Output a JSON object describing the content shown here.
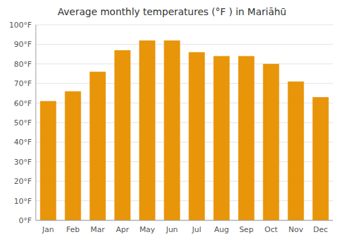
{
  "chart_data": {
    "type": "bar",
    "title": "Average monthly temperatures (°F ) in Mariāhū",
    "categories": [
      "Jan",
      "Feb",
      "Mar",
      "Apr",
      "May",
      "Jun",
      "Jul",
      "Aug",
      "Sep",
      "Oct",
      "Nov",
      "Dec"
    ],
    "values": [
      61,
      66,
      76,
      87,
      92,
      92,
      86,
      84,
      84,
      80,
      71,
      63
    ],
    "color": "#E8950A",
    "ylim": [
      0,
      100
    ],
    "yticks": [
      {
        "value": 0,
        "label": "0°F"
      },
      {
        "value": 10,
        "label": "10°F"
      },
      {
        "value": 20,
        "label": "20°F"
      },
      {
        "value": 30,
        "label": "30°F"
      },
      {
        "value": 40,
        "label": "40°F"
      },
      {
        "value": 50,
        "label": "50°F"
      },
      {
        "value": 60,
        "label": "60°F"
      },
      {
        "value": 70,
        "label": "70°F"
      },
      {
        "value": 80,
        "label": "80°F"
      },
      {
        "value": 90,
        "label": "90°F"
      },
      {
        "value": 100,
        "label": "100°F"
      }
    ],
    "grid": true
  }
}
